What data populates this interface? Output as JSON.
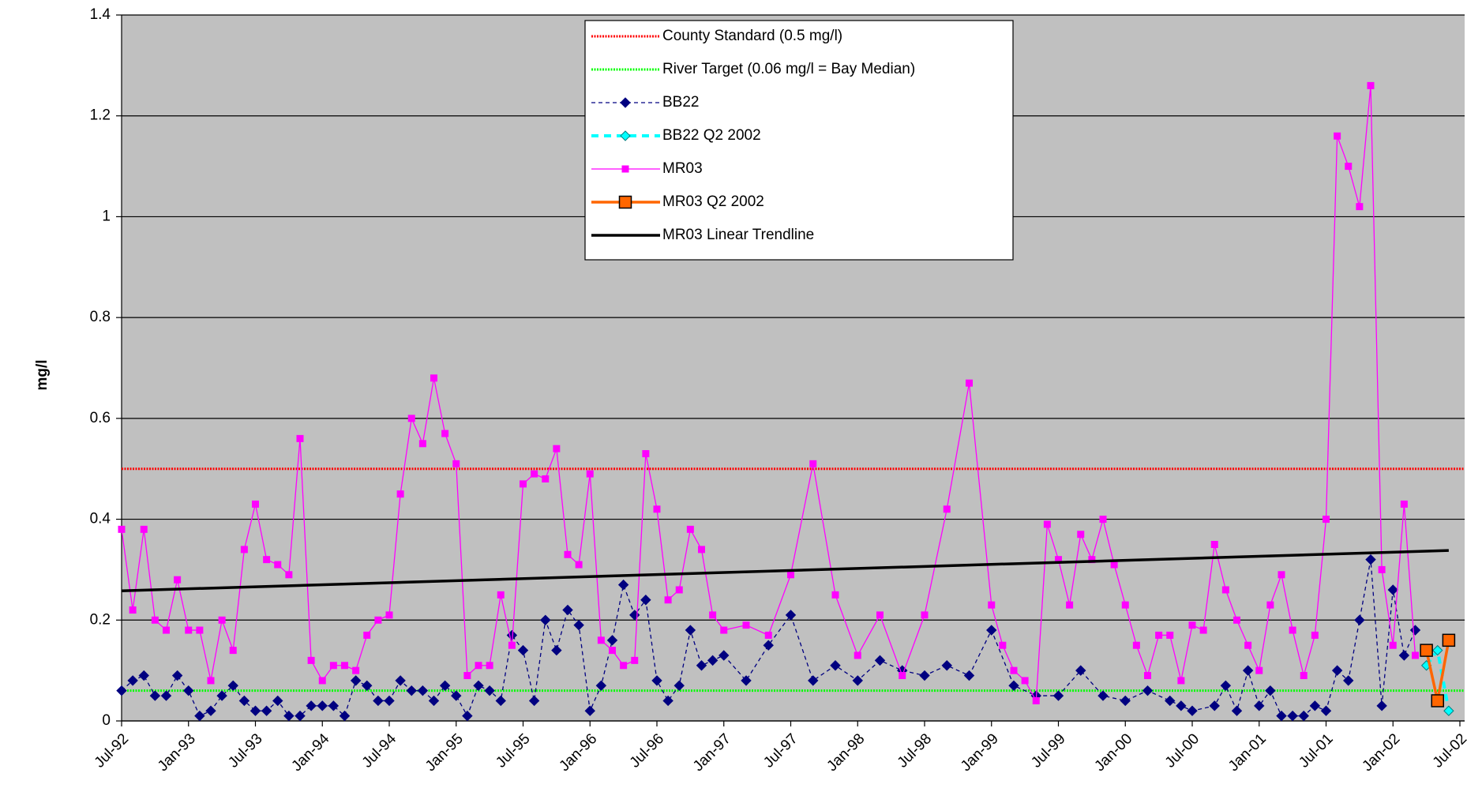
{
  "chart_data": {
    "type": "line",
    "y_label": "mg/l",
    "ylim": [
      0,
      1.4
    ],
    "yticks": [
      0,
      0.2,
      0.4,
      0.6,
      0.8,
      1,
      1.2,
      1.4
    ],
    "grid": true,
    "xlim": [
      "1992-07",
      "2002-07"
    ],
    "xticks": [
      {
        "value": "1992-07",
        "label": "Jul-92"
      },
      {
        "value": "1993-01",
        "label": "Jan-93"
      },
      {
        "value": "1993-07",
        "label": "Jul-93"
      },
      {
        "value": "1994-01",
        "label": "Jan-94"
      },
      {
        "value": "1994-07",
        "label": "Jul-94"
      },
      {
        "value": "1995-01",
        "label": "Jan-95"
      },
      {
        "value": "1995-07",
        "label": "Jul-95"
      },
      {
        "value": "1996-01",
        "label": "Jan-96"
      },
      {
        "value": "1996-07",
        "label": "Jul-96"
      },
      {
        "value": "1997-01",
        "label": "Jan-97"
      },
      {
        "value": "1997-07",
        "label": "Jul-97"
      },
      {
        "value": "1998-01",
        "label": "Jan-98"
      },
      {
        "value": "1998-07",
        "label": "Jul-98"
      },
      {
        "value": "1999-01",
        "label": "Jan-99"
      },
      {
        "value": "1999-07",
        "label": "Jul-99"
      },
      {
        "value": "2000-01",
        "label": "Jan-00"
      },
      {
        "value": "2000-07",
        "label": "Jul-00"
      },
      {
        "value": "2001-01",
        "label": "Jan-01"
      },
      {
        "value": "2001-07",
        "label": "Jul-01"
      },
      {
        "value": "2002-01",
        "label": "Jan-02"
      },
      {
        "value": "2002-07",
        "label": "Jul-02"
      }
    ],
    "legend": "top",
    "series": [
      {
        "name": "County Standard (0.5 mg/l)",
        "color": "#ff0000",
        "line_style": "dotted",
        "marker": "none",
        "hline": 0.5
      },
      {
        "name": "River Target (0.06 mg/l = Bay Median)",
        "color": "#00ff00",
        "line_style": "dotted",
        "marker": "none",
        "hline": 0.06
      },
      {
        "name": "BB22",
        "color": "#000080",
        "line_style": "dashed",
        "marker": "diamond",
        "x": [
          "1992-07",
          "1992-08",
          "1992-09",
          "1992-10",
          "1992-11",
          "1992-12",
          "1993-01",
          "1993-02",
          "1993-03",
          "1993-04",
          "1993-05",
          "1993-06",
          "1993-07",
          "1993-08",
          "1993-09",
          "1993-10",
          "1993-11",
          "1993-12",
          "1994-01",
          "1994-02",
          "1994-03",
          "1994-04",
          "1994-05",
          "1994-06",
          "1994-07",
          "1994-08",
          "1994-09",
          "1994-10",
          "1994-11",
          "1994-12",
          "1995-01",
          "1995-02",
          "1995-03",
          "1995-04",
          "1995-05",
          "1995-06",
          "1995-07",
          "1995-08",
          "1995-09",
          "1995-10",
          "1995-11",
          "1995-12",
          "1996-01",
          "1996-02",
          "1996-03",
          "1996-04",
          "1996-05",
          "1996-06",
          "1996-07",
          "1996-08",
          "1996-09",
          "1996-10",
          "1996-11",
          "1996-12",
          "1997-01",
          "1997-03",
          "1997-05",
          "1997-07",
          "1997-09",
          "1997-11",
          "1998-01",
          "1998-03",
          "1998-05",
          "1998-07",
          "1998-09",
          "1998-11",
          "1999-01",
          "1999-03",
          "1999-05",
          "1999-07",
          "1999-09",
          "1999-11",
          "2000-01",
          "2000-03",
          "2000-05",
          "2000-06",
          "2000-07",
          "2000-09",
          "2000-10",
          "2000-11",
          "2000-12",
          "2001-01",
          "2001-02",
          "2001-03",
          "2001-04",
          "2001-05",
          "2001-06",
          "2001-07",
          "2001-08",
          "2001-09",
          "2001-10",
          "2001-11",
          "2001-12",
          "2002-01",
          "2002-02",
          "2002-03"
        ],
        "values": [
          0.06,
          0.08,
          0.09,
          0.05,
          0.05,
          0.09,
          0.06,
          0.01,
          0.02,
          0.05,
          0.07,
          0.04,
          0.02,
          0.02,
          0.04,
          0.01,
          0.01,
          0.03,
          0.03,
          0.03,
          0.01,
          0.08,
          0.07,
          0.04,
          0.04,
          0.08,
          0.06,
          0.06,
          0.04,
          0.07,
          0.05,
          0.01,
          0.07,
          0.06,
          0.04,
          0.17,
          0.14,
          0.04,
          0.2,
          0.14,
          0.22,
          0.19,
          0.02,
          0.07,
          0.16,
          0.27,
          0.21,
          0.24,
          0.08,
          0.04,
          0.07,
          0.18,
          0.11,
          0.12,
          0.13,
          0.08,
          0.15,
          0.21,
          0.08,
          0.11,
          0.08,
          0.12,
          0.1,
          0.09,
          0.11,
          0.09,
          0.18,
          0.07,
          0.05,
          0.05,
          0.1,
          0.05,
          0.04,
          0.06,
          0.04,
          0.03,
          0.02,
          0.03,
          0.07,
          0.02,
          0.1,
          0.03,
          0.06,
          0.01,
          0.01,
          0.01,
          0.03,
          0.02,
          0.1,
          0.08,
          0.2,
          0.32,
          0.03,
          0.26,
          0.13,
          0.18
        ]
      },
      {
        "name": "BB22 Q2 2002",
        "color": "#00ffff",
        "line_style": "dashed-thick",
        "marker": "diamond",
        "x": [
          "2002-04",
          "2002-05",
          "2002-06"
        ],
        "values": [
          0.11,
          0.14,
          0.02
        ]
      },
      {
        "name": "MR03",
        "color": "#ff00ff",
        "line_style": "solid",
        "marker": "square",
        "x": [
          "1992-07",
          "1992-08",
          "1992-09",
          "1992-10",
          "1992-11",
          "1992-12",
          "1993-01",
          "1993-02",
          "1993-03",
          "1993-04",
          "1993-05",
          "1993-06",
          "1993-07",
          "1993-08",
          "1993-09",
          "1993-10",
          "1993-11",
          "1993-12",
          "1994-01",
          "1994-02",
          "1994-03",
          "1994-04",
          "1994-05",
          "1994-06",
          "1994-07",
          "1994-08",
          "1994-09",
          "1994-10",
          "1994-11",
          "1994-12",
          "1995-01",
          "1995-02",
          "1995-03",
          "1995-04",
          "1995-05",
          "1995-06",
          "1995-07",
          "1995-08",
          "1995-09",
          "1995-10",
          "1995-11",
          "1995-12",
          "1996-01",
          "1996-02",
          "1996-03",
          "1996-04",
          "1996-05",
          "1996-06",
          "1996-07",
          "1996-08",
          "1996-09",
          "1996-10",
          "1996-11",
          "1996-12",
          "1997-01",
          "1997-03",
          "1997-05",
          "1997-07",
          "1997-09",
          "1997-11",
          "1998-01",
          "1998-03",
          "1998-05",
          "1998-07",
          "1998-09",
          "1998-11",
          "1999-01",
          "1999-02",
          "1999-03",
          "1999-04",
          "1999-05",
          "1999-06",
          "1999-07",
          "1999-08",
          "1999-09",
          "1999-10",
          "1999-11",
          "1999-12",
          "2000-01",
          "2000-02",
          "2000-03",
          "2000-04",
          "2000-05",
          "2000-06",
          "2000-07",
          "2000-08",
          "2000-09",
          "2000-10",
          "2000-11",
          "2000-12",
          "2001-01",
          "2001-02",
          "2001-03",
          "2001-04",
          "2001-05",
          "2001-06",
          "2001-07",
          "2001-08",
          "2001-09",
          "2001-10",
          "2001-11",
          "2001-12",
          "2002-01",
          "2002-02",
          "2002-03"
        ],
        "values": [
          0.38,
          0.22,
          0.38,
          0.2,
          0.18,
          0.28,
          0.18,
          0.18,
          0.08,
          0.2,
          0.14,
          0.34,
          0.43,
          0.32,
          0.31,
          0.29,
          0.56,
          0.12,
          0.08,
          0.11,
          0.11,
          0.1,
          0.17,
          0.2,
          0.21,
          0.45,
          0.6,
          0.55,
          0.68,
          0.57,
          0.51,
          0.09,
          0.11,
          0.11,
          0.25,
          0.15,
          0.47,
          0.49,
          0.48,
          0.54,
          0.33,
          0.31,
          0.49,
          0.16,
          0.14,
          0.11,
          0.12,
          0.53,
          0.42,
          0.24,
          0.26,
          0.38,
          0.34,
          0.21,
          0.18,
          0.19,
          0.17,
          0.29,
          0.51,
          0.25,
          0.13,
          0.21,
          0.09,
          0.21,
          0.42,
          0.67,
          0.23,
          0.15,
          0.1,
          0.08,
          0.04,
          0.39,
          0.32,
          0.23,
          0.37,
          0.32,
          0.4,
          0.31,
          0.23,
          0.15,
          0.09,
          0.17,
          0.17,
          0.08,
          0.19,
          0.18,
          0.35,
          0.26,
          0.2,
          0.15,
          0.1,
          0.23,
          0.29,
          0.18,
          0.09,
          0.17,
          0.4,
          1.16,
          1.1,
          1.02,
          1.26,
          0.3,
          0.15,
          0.43,
          0.13
        ]
      },
      {
        "name": "MR03 Q2 2002",
        "color": "#ff6600",
        "line_style": "solid-thick",
        "marker": "square-big",
        "x": [
          "2002-04",
          "2002-05",
          "2002-06"
        ],
        "values": [
          0.14,
          0.04,
          0.16
        ]
      },
      {
        "name": "MR03 Linear Trendline",
        "color": "#000000",
        "line_style": "solid-thick",
        "marker": "none",
        "x": [
          "1992-07",
          "2002-06"
        ],
        "values": [
          0.258,
          0.338
        ]
      }
    ]
  }
}
